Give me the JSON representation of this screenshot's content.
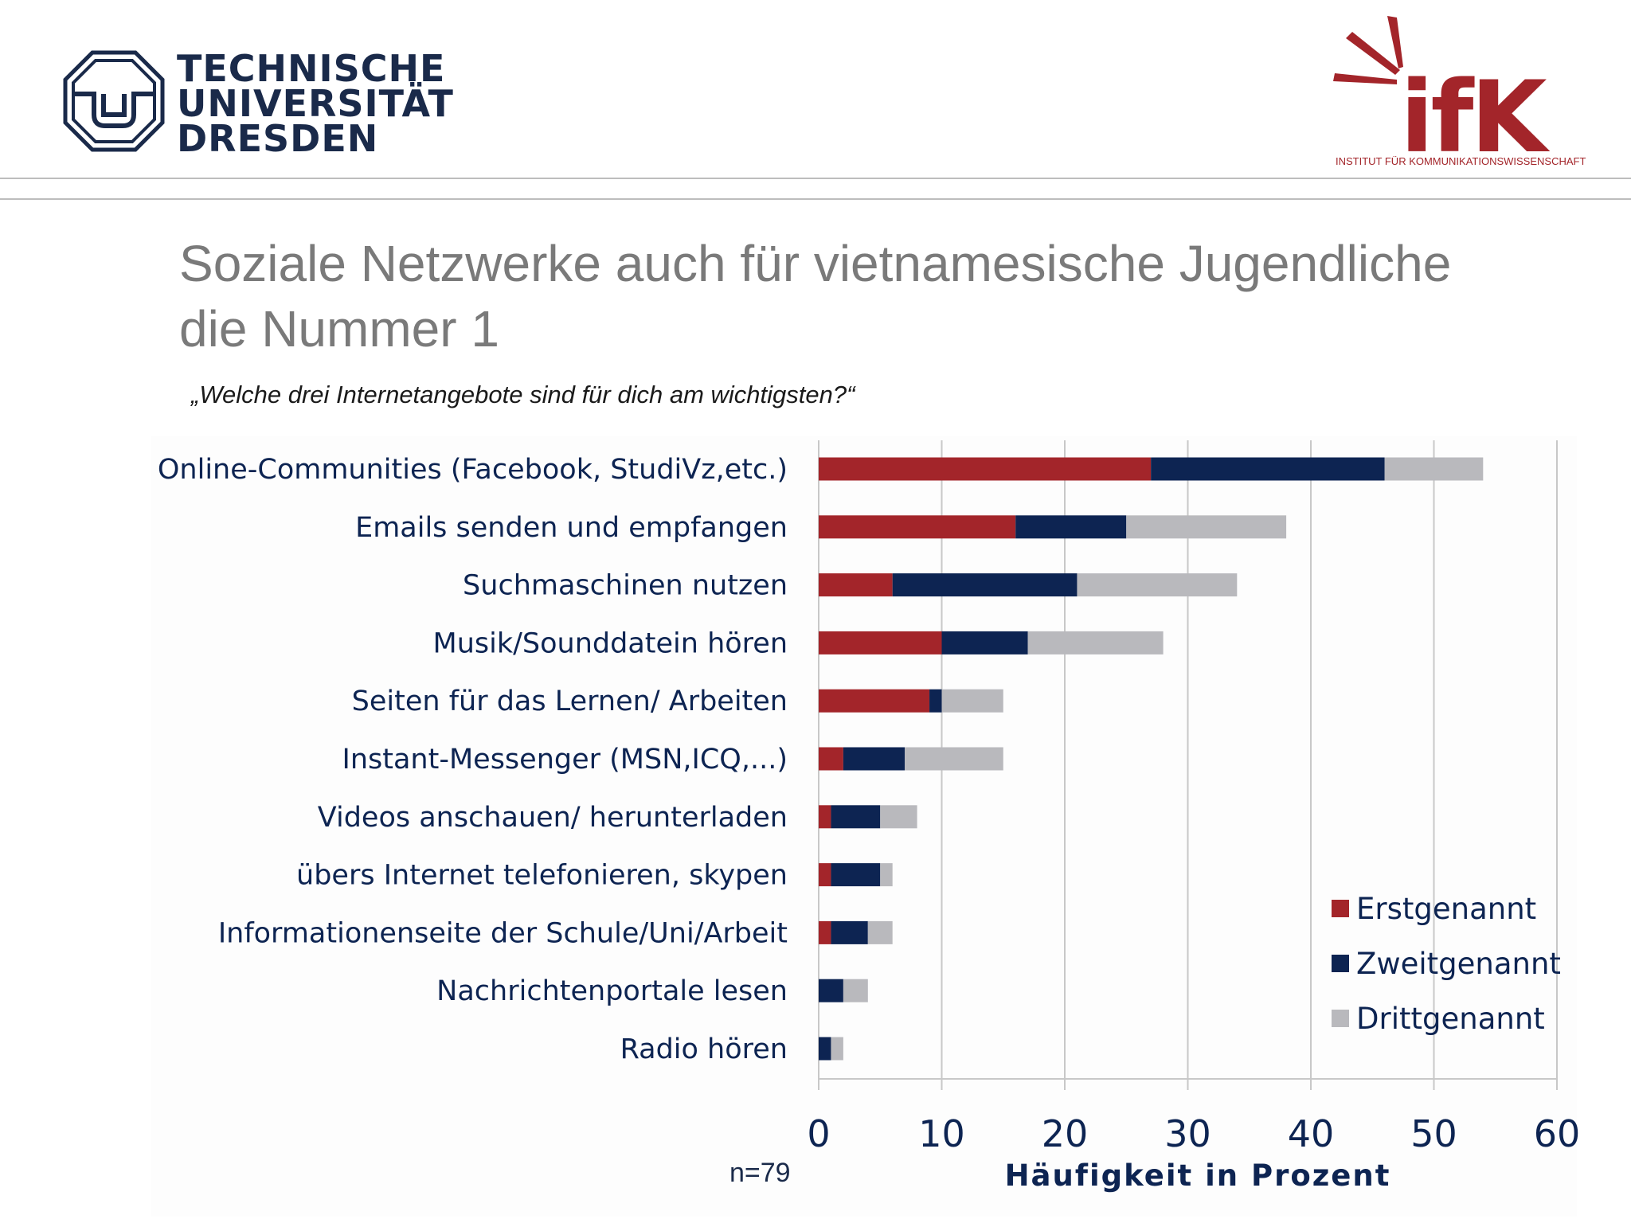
{
  "header": {
    "tud_lines": [
      "TECHNISCHE",
      "UNIVERSITÄT",
      "DRESDEN"
    ],
    "ifk_mark": "ifK",
    "ifk_subtitle": "INSTITUT FÜR KOMMUNIKATIONSWISSENSCHAFT"
  },
  "slide": {
    "title_line1": "Soziale Netzwerke auch für vietnamesische Jugendliche",
    "title_line2": "die Nummer 1",
    "question": "„Welche drei Internetangebote sind für dich am wichtigsten?“",
    "sample_note": "n=79"
  },
  "colors": {
    "erst": "#a3252a",
    "zweit": "#0d2452",
    "dritt": "#b9b9bd",
    "label": "#0d2452",
    "grid": "#c8c8c8"
  },
  "chart_data": {
    "type": "bar",
    "orientation": "horizontal",
    "stacked": true,
    "categories": [
      "Online-Communities (Facebook, StudiVz,etc.)",
      "Emails senden und empfangen",
      "Suchmaschinen nutzen",
      "Musik/Sounddatein hören",
      "Seiten für das Lernen/ Arbeiten",
      "Instant-Messenger (MSN,ICQ,...)",
      "Videos anschauen/ herunterladen",
      "übers Internet telefonieren, skypen",
      "Informationenseite der Schule/Uni/Arbeit",
      "Nachrichtenportale lesen",
      "Radio hören"
    ],
    "series": [
      {
        "name": "Erstgenannt",
        "values": [
          27,
          16,
          6,
          10,
          9,
          2,
          1,
          1,
          1,
          0,
          0
        ]
      },
      {
        "name": "Zweitgenannt",
        "values": [
          19,
          9,
          15,
          7,
          1,
          5,
          4,
          4,
          3,
          2,
          1
        ]
      },
      {
        "name": "Drittgenannt",
        "values": [
          8,
          13,
          13,
          11,
          5,
          8,
          3,
          1,
          2,
          2,
          1
        ]
      }
    ],
    "xlabel": "Häufigkeit in Prozent",
    "ylabel": "",
    "xlim": [
      0,
      60
    ],
    "xticks": [
      0,
      10,
      20,
      30,
      40,
      50,
      60
    ],
    "grid": true,
    "legend": "bottom-right"
  }
}
